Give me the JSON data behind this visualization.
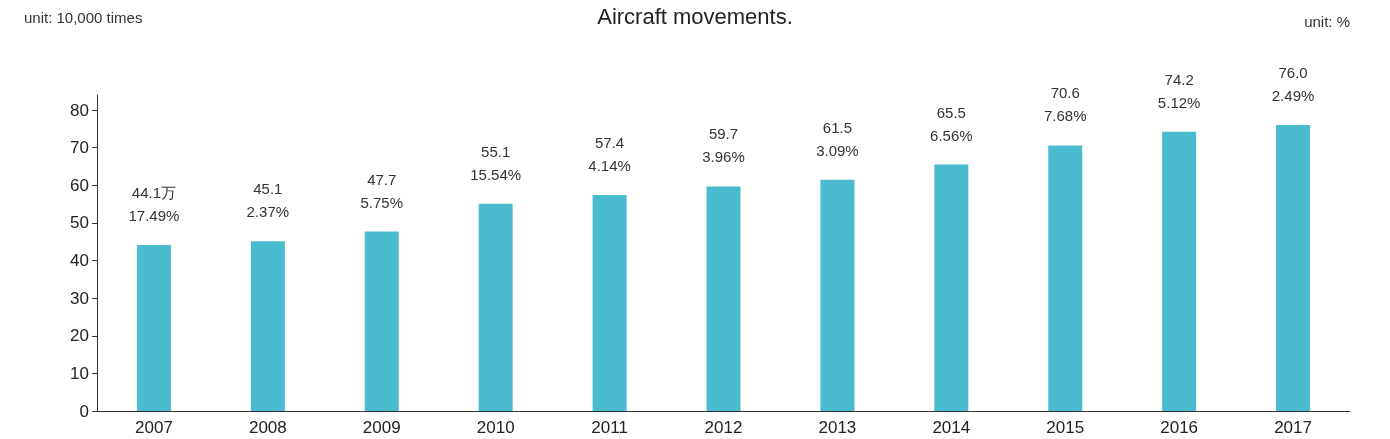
{
  "chart_data": {
    "type": "bar",
    "title": "Aircraft movements.",
    "annotations": [
      "unit: 10,000 times",
      "unit: %"
    ],
    "categories": [
      "2007",
      "2008",
      "2009",
      "2010",
      "2011",
      "2012",
      "2013",
      "2014",
      "2015",
      "2016",
      "2017"
    ],
    "values": [
      44.1,
      45.1,
      47.7,
      55.1,
      57.4,
      59.7,
      61.5,
      65.5,
      70.6,
      74.2,
      76.0
    ],
    "value_labels": [
      "44.1万\n17.49%",
      "45.1\n2.37%",
      "47.7\n5.75%",
      "55.1\n15.54%",
      "57.4\n4.14%",
      "59.7\n3.96%",
      "61.5\n3.09%",
      "65.5\n6.56%",
      "70.6\n7.68%",
      "74.2\n5.12%",
      "76.0\n2.49%"
    ],
    "color": "#4bbcd0",
    "ylim": [
      0,
      84
    ],
    "yticks": [
      0,
      10,
      20,
      30,
      40,
      50,
      60,
      70,
      80
    ],
    "grid": false
  }
}
